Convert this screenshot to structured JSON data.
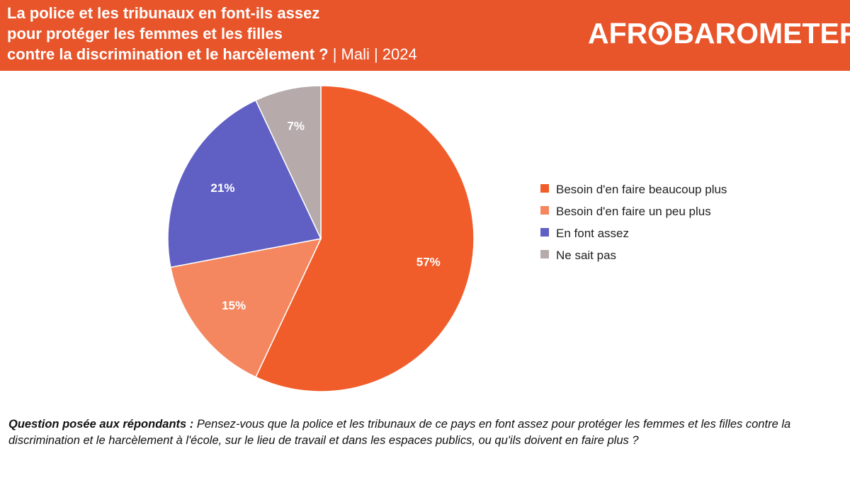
{
  "header": {
    "title_line1": "La police et les tribunaux en font-ils assez",
    "title_line2": "pour protéger les femmes et les filles",
    "title_line3": "contre la discrimination et le harcèlement ?",
    "title_suffix": " | Mali | 2024",
    "logo_text_before": "AFR",
    "logo_text_after": "BAROMETER"
  },
  "colors": {
    "header_bg": "#e8552b",
    "slice_1": "#f05d2b",
    "slice_2": "#f4875f",
    "slice_3": "#6060c4",
    "slice_4": "#b6aaab"
  },
  "chart_data": {
    "type": "pie",
    "categories": [
      "Besoin d'en faire beaucoup plus",
      "Besoin d'en faire un peu plus",
      "En font assez",
      "Ne sait pas"
    ],
    "values": [
      57,
      15,
      21,
      7
    ],
    "labels": [
      "57%",
      "15%",
      "21%",
      "7%"
    ],
    "colors": [
      "#f05d2b",
      "#f4875f",
      "#6060c4",
      "#b6aaab"
    ],
    "legend_position": "right",
    "start": "top",
    "direction": "clockwise"
  },
  "legend": {
    "items": [
      {
        "label": "Besoin d'en faire beaucoup plus"
      },
      {
        "label": "Besoin d'en faire un peu plus"
      },
      {
        "label": "En font assez"
      },
      {
        "label": "Ne sait pas"
      }
    ]
  },
  "footnote": {
    "label": "Question posée aux répondants :",
    "text": " Pensez-vous que la police et les tribunaux de ce pays en font assez pour protéger les femmes et les filles contre la discrimination et le harcèlement à l'école, sur le lieu de travail et dans les espaces publics, ou qu'ils doivent en faire plus ?"
  }
}
